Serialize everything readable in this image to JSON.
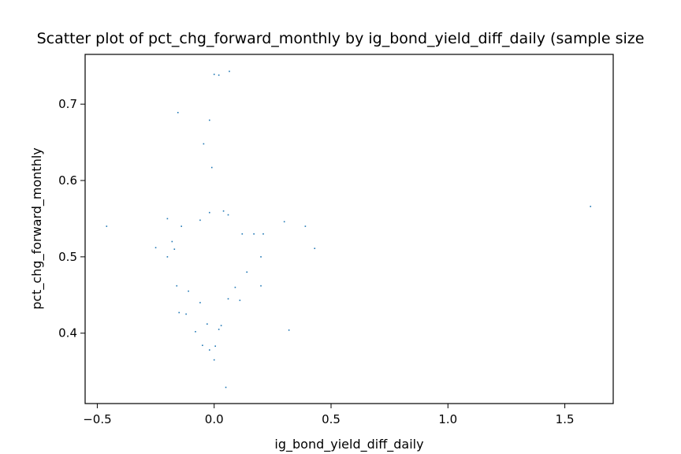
{
  "chart_data": {
    "type": "scatter",
    "title": "Scatter plot of pct_chg_forward_monthly by ig_bond_yield_diff_daily (sample size",
    "xlabel": "ig_bond_yield_diff_daily",
    "ylabel": "pct_chg_forward_monthly",
    "xlim": [
      -0.552,
      1.707
    ],
    "ylim": [
      0.3078,
      0.7652
    ],
    "x_ticks": [
      -0.5,
      0.0,
      0.5,
      1.0,
      1.5
    ],
    "x_tick_labels": [
      "−0.5",
      "0.0",
      "0.5",
      "1.0",
      "1.5"
    ],
    "y_ticks": [
      0.4,
      0.5,
      0.6,
      0.7
    ],
    "y_tick_labels": [
      "0.4",
      "0.5",
      "0.6",
      "0.7"
    ],
    "grid": false,
    "marker_color": "#1f77b4",
    "series": [
      {
        "points": [
          [
            0.0,
            0.739
          ],
          [
            0.02,
            0.738
          ],
          [
            0.065,
            0.743
          ],
          [
            -0.155,
            0.689
          ],
          [
            -0.02,
            0.679
          ],
          [
            -0.045,
            0.648
          ],
          [
            -0.01,
            0.617
          ],
          [
            -0.46,
            0.54
          ],
          [
            -0.25,
            0.512
          ],
          [
            -0.2,
            0.55
          ],
          [
            0.3,
            0.546
          ],
          [
            0.39,
            0.54
          ],
          [
            0.43,
            0.511
          ],
          [
            1.61,
            0.566
          ],
          [
            0.32,
            0.404
          ],
          [
            0.05,
            0.329
          ],
          [
            -0.05,
            0.384
          ],
          [
            -0.02,
            0.378
          ],
          [
            0.0,
            0.365
          ],
          [
            0.005,
            0.383
          ],
          [
            0.03,
            0.41
          ],
          [
            -0.15,
            0.427
          ],
          [
            -0.12,
            0.425
          ],
          [
            -0.08,
            0.402
          ],
          [
            -0.03,
            0.412
          ],
          [
            0.02,
            0.405
          ],
          [
            0.11,
            0.443
          ],
          [
            0.2,
            0.462
          ],
          [
            0.2,
            0.5
          ],
          [
            0.21,
            0.53
          ],
          [
            0.17,
            0.53
          ],
          [
            0.12,
            0.53
          ],
          [
            0.06,
            0.555
          ],
          [
            -0.02,
            0.558
          ],
          [
            0.04,
            0.56
          ],
          [
            -0.06,
            0.548
          ],
          [
            -0.14,
            0.54
          ],
          [
            -0.18,
            0.52
          ],
          [
            -0.2,
            0.5
          ],
          [
            -0.17,
            0.51
          ],
          [
            -0.16,
            0.462
          ],
          [
            -0.11,
            0.455
          ],
          [
            -0.06,
            0.44
          ],
          [
            0.06,
            0.445
          ],
          [
            0.09,
            0.46
          ],
          [
            0.14,
            0.48
          ]
        ]
      }
    ]
  }
}
